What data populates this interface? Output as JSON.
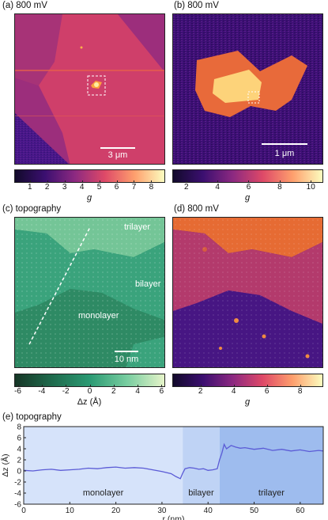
{
  "panels": {
    "a": {
      "label": "(a) 800 mV",
      "scale": "3 μm"
    },
    "b": {
      "label": "(b) 800 mV",
      "scale": "1 μm"
    },
    "c": {
      "label": "(c) topography",
      "scale": "10 nm",
      "regions": [
        "trilayer",
        "bilayer",
        "monolayer"
      ]
    },
    "d": {
      "label": "(d) 800 mV"
    },
    "e": {
      "label": "(e) topography"
    }
  },
  "colorbars": {
    "a": {
      "ticks": [
        "1",
        "2",
        "3",
        "4",
        "5",
        "6",
        "7",
        "8"
      ],
      "label": "g",
      "range": [
        0.1,
        8.8
      ]
    },
    "b": {
      "ticks": [
        "2",
        "4",
        "6",
        "8",
        "10"
      ],
      "label": "g",
      "range": [
        1.1,
        10.8
      ]
    },
    "c": {
      "ticks": [
        "-6",
        "-4",
        "-2",
        "0",
        "2",
        "4",
        "6"
      ],
      "label": "Δz (Å)",
      "range": [
        -6.3,
        6.3
      ]
    },
    "d": {
      "ticks": [
        "2",
        "4",
        "6",
        "8"
      ],
      "label": "g",
      "range": [
        0.3,
        9.4
      ]
    }
  },
  "chart_data": {
    "type": "line",
    "title": "",
    "xlabel": "r (nm)",
    "ylabel": "Δz (Å)",
    "xlim": [
      0,
      65
    ],
    "ylim": [
      -6,
      8
    ],
    "xticks": [
      "0",
      "10",
      "20",
      "30",
      "40",
      "50",
      "60"
    ],
    "yticks": [
      "-6",
      "-4",
      "-2",
      "0",
      "2",
      "4",
      "6",
      "8"
    ],
    "regions": [
      {
        "name": "monolayer",
        "from": 0,
        "to": 34.5,
        "color": "#d6e3fa"
      },
      {
        "name": "bilayer",
        "from": 34.5,
        "to": 42.5,
        "color": "#bfd3f5"
      },
      {
        "name": "trilayer",
        "from": 42.5,
        "to": 65,
        "color": "#9ebcee"
      }
    ],
    "series": [
      {
        "color": "#5b5bd6",
        "x": [
          0,
          2,
          4,
          6,
          8,
          10,
          12,
          14,
          16,
          18,
          20,
          22,
          24,
          26,
          28,
          30,
          32,
          33,
          34,
          34.5,
          35,
          36,
          37,
          38,
          39,
          40,
          41,
          42,
          42.5,
          43,
          43.5,
          44,
          45,
          46,
          47,
          48,
          50,
          52,
          54,
          56,
          58,
          60,
          62,
          64,
          65
        ],
        "y": [
          0.1,
          0.0,
          0.2,
          0.3,
          0.1,
          0.2,
          0.3,
          0.5,
          0.4,
          0.6,
          0.7,
          0.5,
          0.6,
          0.5,
          0.2,
          -0.1,
          -0.5,
          -1.0,
          -1.4,
          -0.4,
          0.4,
          0.6,
          0.5,
          0.3,
          0.4,
          0.1,
          0.2,
          0.4,
          2.0,
          3.2,
          4.8,
          4.0,
          4.6,
          4.3,
          4.1,
          4.2,
          3.9,
          4.1,
          3.7,
          3.9,
          3.6,
          3.8,
          3.5,
          3.7,
          3.6
        ]
      }
    ]
  },
  "colors": {
    "inferno_like": [
      "#120a2b",
      "#3b0f70",
      "#8c2981",
      "#de4968",
      "#fe9f6d",
      "#fcfdbf"
    ],
    "green_map": [
      "#163626",
      "#1f6b4d",
      "#2b9a73",
      "#78cda0",
      "#e6f4c9"
    ]
  }
}
